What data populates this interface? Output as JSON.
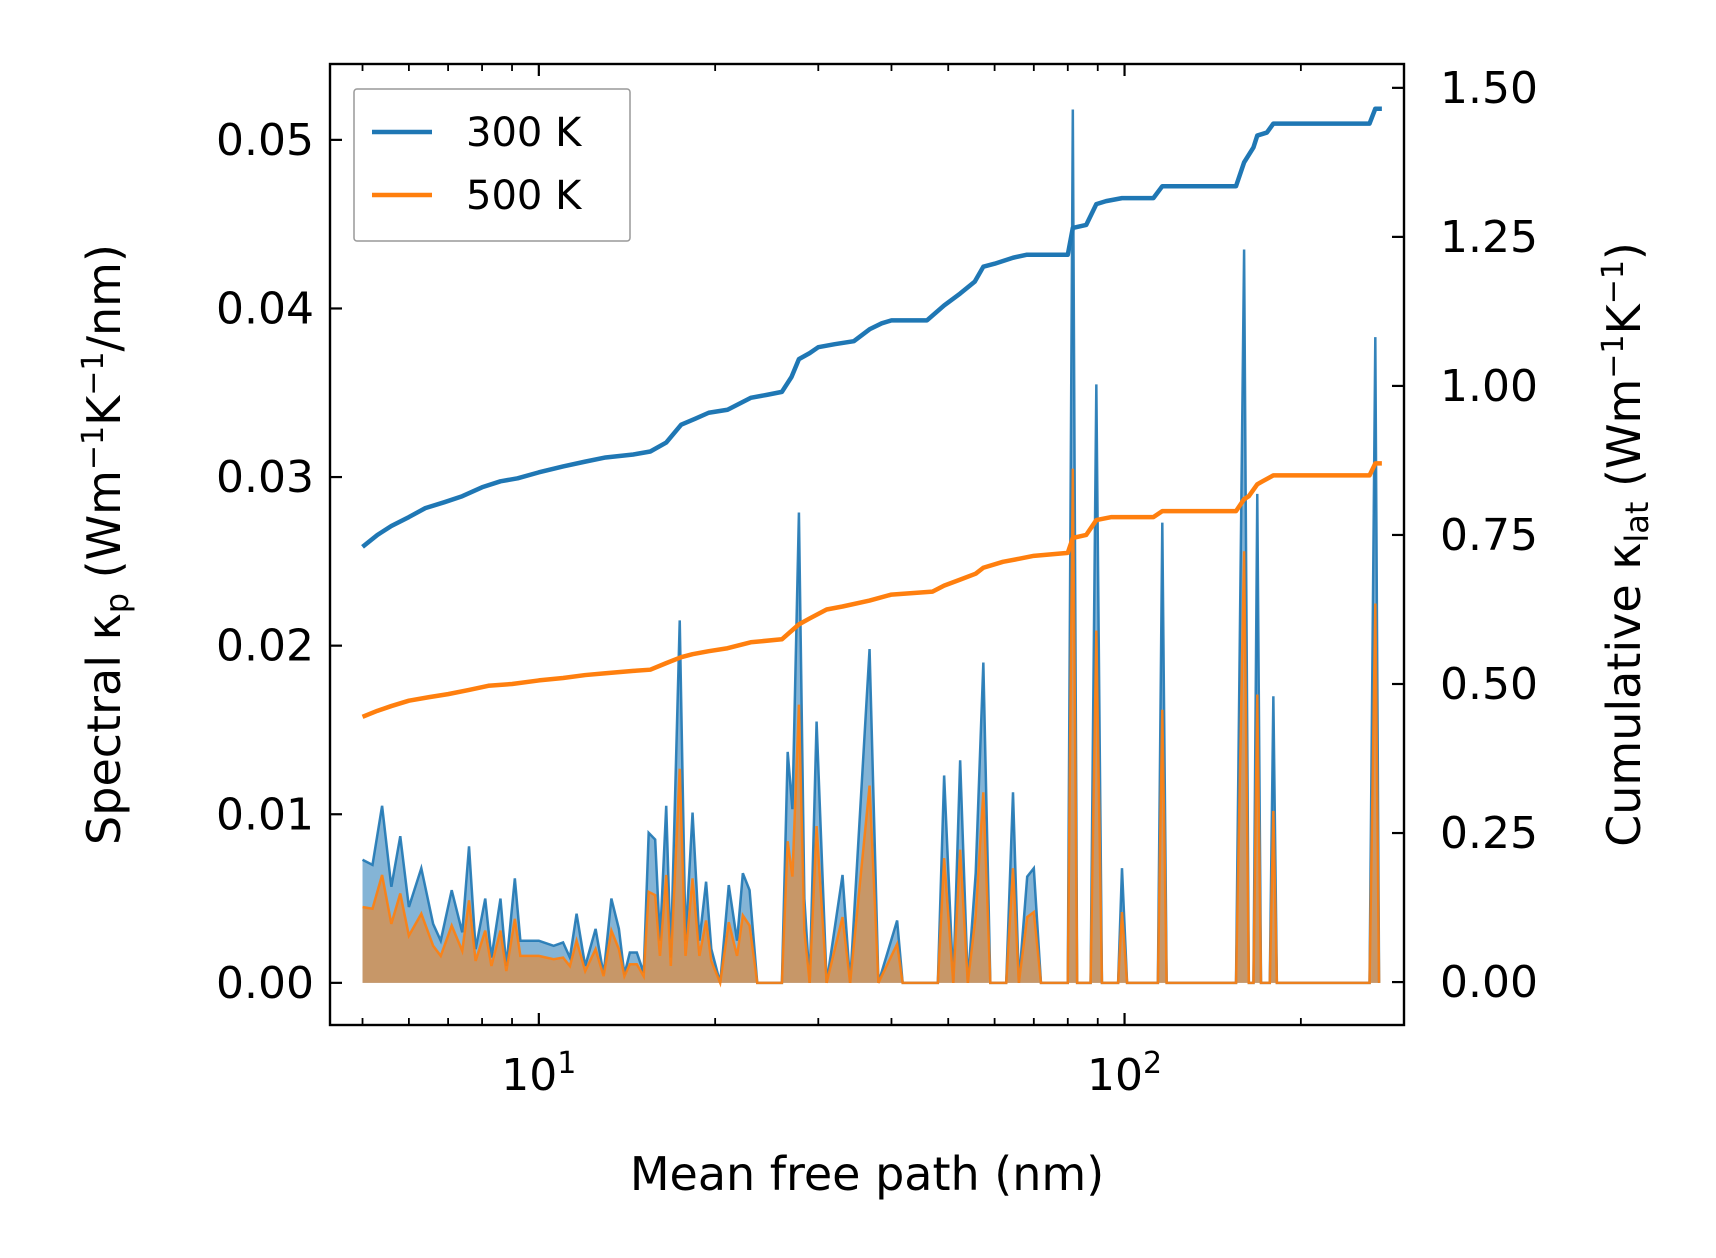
{
  "chart_data": {
    "type": "line",
    "xlabel": "Mean free path (nm)",
    "ylabel_left": {
      "main": "Spectral κ",
      "sub": "p",
      "units_open": " (Wm",
      "sup1": "−1",
      "mid": "K",
      "sup2": "−1",
      "units_close": "/nm)"
    },
    "ylabel_right": {
      "main": "Cumulative κ",
      "sub": "lat",
      "units_open": " (Wm",
      "sup1": "−1",
      "mid": "K",
      "sup2": "−1",
      "units_close": ")"
    },
    "x_scale": "log",
    "xlim": [
      4.4,
      300
    ],
    "x_ticks": [
      {
        "value": 10,
        "base": "10",
        "exp": "1"
      },
      {
        "value": 100,
        "base": "10",
        "exp": "2"
      }
    ],
    "ylim_left": [
      -0.0025,
      0.0545
    ],
    "y_ticks_left": [
      "0.00",
      "0.01",
      "0.02",
      "0.03",
      "0.04",
      "0.05"
    ],
    "ylim_right": [
      -0.072,
      1.54
    ],
    "y_ticks_right": [
      "0.00",
      "0.25",
      "0.50",
      "0.75",
      "1.00",
      "1.25",
      "1.50"
    ],
    "legend": {
      "position": "top-left",
      "entries": [
        "300 K",
        "500 K"
      ]
    },
    "colors": {
      "300K": "#1f77b4",
      "500K": "#ff7f0e"
    },
    "spectral": {
      "300K": [
        [
          5.0,
          0.0073
        ],
        [
          5.2,
          0.007
        ],
        [
          5.4,
          0.0105
        ],
        [
          5.6,
          0.0057
        ],
        [
          5.8,
          0.0087
        ],
        [
          6.0,
          0.0045
        ],
        [
          6.3,
          0.0068
        ],
        [
          6.6,
          0.0035
        ],
        [
          6.8,
          0.0025
        ],
        [
          7.1,
          0.0055
        ],
        [
          7.4,
          0.003
        ],
        [
          7.6,
          0.0081
        ],
        [
          7.8,
          0.002
        ],
        [
          8.1,
          0.005
        ],
        [
          8.3,
          0.0015
        ],
        [
          8.6,
          0.005
        ],
        [
          8.8,
          0.001
        ],
        [
          9.1,
          0.0062
        ],
        [
          9.3,
          0.0025
        ],
        [
          10.0,
          0.0025
        ],
        [
          10.6,
          0.0022
        ],
        [
          11.0,
          0.0024
        ],
        [
          11.3,
          0.0015
        ],
        [
          11.6,
          0.0041
        ],
        [
          12.0,
          0.001
        ],
        [
          12.5,
          0.0032
        ],
        [
          12.9,
          0.0005
        ],
        [
          13.3,
          0.005
        ],
        [
          13.7,
          0.0032
        ],
        [
          14.0,
          0.0005
        ],
        [
          14.3,
          0.0018
        ],
        [
          14.7,
          0.0018
        ],
        [
          15.1,
          0.0006
        ],
        [
          15.4,
          0.0089
        ],
        [
          15.8,
          0.0085
        ],
        [
          16.1,
          0.0025
        ],
        [
          16.5,
          0.0105
        ],
        [
          16.8,
          0.0015
        ],
        [
          17.4,
          0.0215
        ],
        [
          17.8,
          0.0025
        ],
        [
          18.3,
          0.0101
        ],
        [
          18.8,
          0.0025
        ],
        [
          19.3,
          0.006
        ],
        [
          19.7,
          0.002
        ],
        [
          20.4,
          0.0
        ],
        [
          21.1,
          0.0058
        ],
        [
          21.8,
          0.0025
        ],
        [
          22.3,
          0.0065
        ],
        [
          22.9,
          0.0055
        ],
        [
          23.6,
          0.0
        ],
        [
          26.0,
          0.0
        ],
        [
          26.6,
          0.0137
        ],
        [
          27.1,
          0.0103
        ],
        [
          27.8,
          0.0279
        ],
        [
          28.4,
          0.005
        ],
        [
          29.0,
          0.0
        ],
        [
          29.8,
          0.0155
        ],
        [
          31.0,
          0.0
        ],
        [
          33.0,
          0.0064
        ],
        [
          34.0,
          0.0
        ],
        [
          36.7,
          0.0198
        ],
        [
          38.0,
          0.0
        ],
        [
          40.9,
          0.0037
        ],
        [
          41.8,
          0.0
        ],
        [
          48.0,
          0.0
        ],
        [
          49.2,
          0.0123
        ],
        [
          51.0,
          0.0
        ],
        [
          52.4,
          0.0132
        ],
        [
          54.0,
          0.0
        ],
        [
          55.7,
          0.0065
        ],
        [
          57.4,
          0.019
        ],
        [
          59.0,
          0.0
        ],
        [
          62.8,
          0.0
        ],
        [
          64.5,
          0.0113
        ],
        [
          66.0,
          0.0
        ],
        [
          68.2,
          0.0063
        ],
        [
          70.0,
          0.0068
        ],
        [
          72.0,
          0.0
        ],
        [
          80.0,
          0.0
        ],
        [
          81.6,
          0.0518
        ],
        [
          83.0,
          0.0
        ],
        [
          87.5,
          0.0
        ],
        [
          89.5,
          0.0355
        ],
        [
          91.5,
          0.0
        ],
        [
          97.5,
          0.0
        ],
        [
          99.0,
          0.0068
        ],
        [
          101.0,
          0.0
        ],
        [
          114.0,
          0.0
        ],
        [
          116.0,
          0.0273
        ],
        [
          118.0,
          0.0
        ],
        [
          155.0,
          0.0
        ],
        [
          160.0,
          0.0435
        ],
        [
          163.0,
          0.0
        ],
        [
          166.0,
          0.0
        ],
        [
          168.5,
          0.029
        ],
        [
          171.0,
          0.0
        ],
        [
          177.0,
          0.0
        ],
        [
          179.5,
          0.017
        ],
        [
          182.0,
          0.0
        ],
        [
          262.0,
          0.0
        ],
        [
          268.0,
          0.0383
        ],
        [
          272.0,
          0.0
        ]
      ],
      "500K": [
        [
          5.0,
          0.0045
        ],
        [
          5.2,
          0.0044
        ],
        [
          5.4,
          0.0064
        ],
        [
          5.6,
          0.0035
        ],
        [
          5.8,
          0.0053
        ],
        [
          6.0,
          0.0028
        ],
        [
          6.3,
          0.0041
        ],
        [
          6.6,
          0.0022
        ],
        [
          6.8,
          0.0016
        ],
        [
          7.1,
          0.0034
        ],
        [
          7.4,
          0.0019
        ],
        [
          7.6,
          0.0049
        ],
        [
          7.8,
          0.0013
        ],
        [
          8.1,
          0.0031
        ],
        [
          8.3,
          0.001
        ],
        [
          8.6,
          0.0031
        ],
        [
          8.8,
          0.0007
        ],
        [
          9.1,
          0.0038
        ],
        [
          9.3,
          0.0016
        ],
        [
          10.0,
          0.0016
        ],
        [
          10.6,
          0.0014
        ],
        [
          11.0,
          0.0015
        ],
        [
          11.3,
          0.001
        ],
        [
          11.6,
          0.0025
        ],
        [
          12.0,
          0.0007
        ],
        [
          12.5,
          0.002
        ],
        [
          12.9,
          0.0004
        ],
        [
          13.3,
          0.0031
        ],
        [
          13.7,
          0.002
        ],
        [
          14.0,
          0.0004
        ],
        [
          14.3,
          0.0011
        ],
        [
          14.7,
          0.0011
        ],
        [
          15.1,
          0.0004
        ],
        [
          15.4,
          0.0054
        ],
        [
          15.8,
          0.0052
        ],
        [
          16.1,
          0.0016
        ],
        [
          16.5,
          0.0064
        ],
        [
          16.8,
          0.001
        ],
        [
          17.4,
          0.0127
        ],
        [
          17.8,
          0.0016
        ],
        [
          18.3,
          0.0062
        ],
        [
          18.8,
          0.0016
        ],
        [
          19.3,
          0.0037
        ],
        [
          19.7,
          0.0013
        ],
        [
          20.4,
          0.0
        ],
        [
          21.1,
          0.0036
        ],
        [
          21.8,
          0.0016
        ],
        [
          22.3,
          0.004
        ],
        [
          22.9,
          0.0034
        ],
        [
          23.6,
          0.0
        ],
        [
          26.0,
          0.0
        ],
        [
          26.6,
          0.0084
        ],
        [
          27.1,
          0.0063
        ],
        [
          27.8,
          0.0165
        ],
        [
          28.4,
          0.0031
        ],
        [
          29.0,
          0.0
        ],
        [
          29.8,
          0.0093
        ],
        [
          31.0,
          0.0
        ],
        [
          33.0,
          0.0039
        ],
        [
          34.0,
          0.0
        ],
        [
          36.7,
          0.0117
        ],
        [
          38.0,
          0.0
        ],
        [
          40.9,
          0.0023
        ],
        [
          41.8,
          0.0
        ],
        [
          48.0,
          0.0
        ],
        [
          49.2,
          0.0074
        ],
        [
          51.0,
          0.0
        ],
        [
          52.4,
          0.0079
        ],
        [
          54.0,
          0.0
        ],
        [
          55.7,
          0.004
        ],
        [
          57.4,
          0.0113
        ],
        [
          59.0,
          0.0
        ],
        [
          62.8,
          0.0
        ],
        [
          64.5,
          0.0068
        ],
        [
          66.0,
          0.0
        ],
        [
          68.2,
          0.0039
        ],
        [
          70.0,
          0.0042
        ],
        [
          72.0,
          0.0
        ],
        [
          80.0,
          0.0
        ],
        [
          81.6,
          0.0305
        ],
        [
          83.0,
          0.0
        ],
        [
          87.5,
          0.0
        ],
        [
          89.5,
          0.0209
        ],
        [
          91.5,
          0.0
        ],
        [
          97.5,
          0.0
        ],
        [
          99.0,
          0.0042
        ],
        [
          101.0,
          0.0
        ],
        [
          114.0,
          0.0
        ],
        [
          116.0,
          0.0162
        ],
        [
          118.0,
          0.0
        ],
        [
          155.0,
          0.0
        ],
        [
          160.0,
          0.0256
        ],
        [
          163.0,
          0.0
        ],
        [
          166.0,
          0.0
        ],
        [
          168.5,
          0.0171
        ],
        [
          171.0,
          0.0
        ],
        [
          177.0,
          0.0
        ],
        [
          179.5,
          0.0102
        ],
        [
          182.0,
          0.0
        ],
        [
          262.0,
          0.0
        ],
        [
          268.0,
          0.0225
        ],
        [
          272.0,
          0.0
        ]
      ]
    },
    "cumulative": {
      "300K": [
        [
          5.0,
          0.73
        ],
        [
          5.3,
          0.75
        ],
        [
          5.6,
          0.765
        ],
        [
          6.0,
          0.78
        ],
        [
          6.4,
          0.795
        ],
        [
          6.9,
          0.805
        ],
        [
          7.4,
          0.815
        ],
        [
          8.0,
          0.83
        ],
        [
          8.6,
          0.84
        ],
        [
          9.2,
          0.845
        ],
        [
          10.0,
          0.855
        ],
        [
          11.0,
          0.865
        ],
        [
          12.0,
          0.873
        ],
        [
          13.0,
          0.88
        ],
        [
          14.5,
          0.885
        ],
        [
          15.5,
          0.89
        ],
        [
          16.5,
          0.905
        ],
        [
          17.5,
          0.935
        ],
        [
          18.5,
          0.945
        ],
        [
          19.5,
          0.955
        ],
        [
          21.0,
          0.96
        ],
        [
          23.0,
          0.98
        ],
        [
          24.5,
          0.985
        ],
        [
          26.0,
          0.99
        ],
        [
          27.0,
          1.015
        ],
        [
          27.8,
          1.045
        ],
        [
          29.0,
          1.055
        ],
        [
          30.0,
          1.065
        ],
        [
          32.0,
          1.07
        ],
        [
          34.5,
          1.075
        ],
        [
          36.7,
          1.095
        ],
        [
          38.5,
          1.105
        ],
        [
          40.0,
          1.11
        ],
        [
          46.0,
          1.11
        ],
        [
          49.2,
          1.135
        ],
        [
          52.4,
          1.155
        ],
        [
          55.5,
          1.175
        ],
        [
          57.4,
          1.2
        ],
        [
          60.0,
          1.205
        ],
        [
          64.5,
          1.215
        ],
        [
          68.0,
          1.22
        ],
        [
          80.0,
          1.22
        ],
        [
          81.6,
          1.265
        ],
        [
          86.0,
          1.27
        ],
        [
          89.5,
          1.305
        ],
        [
          93.0,
          1.31
        ],
        [
          99.0,
          1.315
        ],
        [
          112.0,
          1.315
        ],
        [
          116.0,
          1.335
        ],
        [
          155.0,
          1.335
        ],
        [
          160.0,
          1.375
        ],
        [
          166.0,
          1.4
        ],
        [
          168.5,
          1.42
        ],
        [
          175.0,
          1.425
        ],
        [
          179.5,
          1.44
        ],
        [
          262.0,
          1.44
        ],
        [
          268.0,
          1.465
        ],
        [
          275.0,
          1.465
        ]
      ],
      "500K": [
        [
          5.0,
          0.445
        ],
        [
          5.3,
          0.455
        ],
        [
          5.6,
          0.463
        ],
        [
          6.0,
          0.472
        ],
        [
          6.5,
          0.478
        ],
        [
          7.0,
          0.483
        ],
        [
          7.6,
          0.49
        ],
        [
          8.2,
          0.497
        ],
        [
          9.0,
          0.5
        ],
        [
          10.0,
          0.506
        ],
        [
          11.0,
          0.51
        ],
        [
          12.0,
          0.515
        ],
        [
          13.0,
          0.518
        ],
        [
          14.5,
          0.522
        ],
        [
          15.5,
          0.524
        ],
        [
          16.5,
          0.535
        ],
        [
          17.5,
          0.545
        ],
        [
          18.3,
          0.55
        ],
        [
          19.5,
          0.555
        ],
        [
          21.0,
          0.56
        ],
        [
          23.0,
          0.57
        ],
        [
          26.0,
          0.575
        ],
        [
          27.8,
          0.6
        ],
        [
          29.0,
          0.61
        ],
        [
          31.0,
          0.625
        ],
        [
          33.0,
          0.63
        ],
        [
          36.7,
          0.64
        ],
        [
          40.0,
          0.65
        ],
        [
          47.0,
          0.655
        ],
        [
          49.2,
          0.665
        ],
        [
          52.4,
          0.675
        ],
        [
          55.7,
          0.685
        ],
        [
          57.4,
          0.695
        ],
        [
          62.0,
          0.705
        ],
        [
          66.0,
          0.71
        ],
        [
          70.0,
          0.715
        ],
        [
          80.0,
          0.72
        ],
        [
          81.6,
          0.745
        ],
        [
          86.0,
          0.75
        ],
        [
          89.5,
          0.775
        ],
        [
          95.0,
          0.78
        ],
        [
          112.0,
          0.78
        ],
        [
          116.0,
          0.79
        ],
        [
          155.0,
          0.79
        ],
        [
          160.0,
          0.81
        ],
        [
          163.0,
          0.815
        ],
        [
          168.5,
          0.835
        ],
        [
          172.0,
          0.84
        ],
        [
          179.5,
          0.85
        ],
        [
          262.0,
          0.85
        ],
        [
          268.0,
          0.87
        ],
        [
          275.0,
          0.87
        ]
      ]
    }
  }
}
